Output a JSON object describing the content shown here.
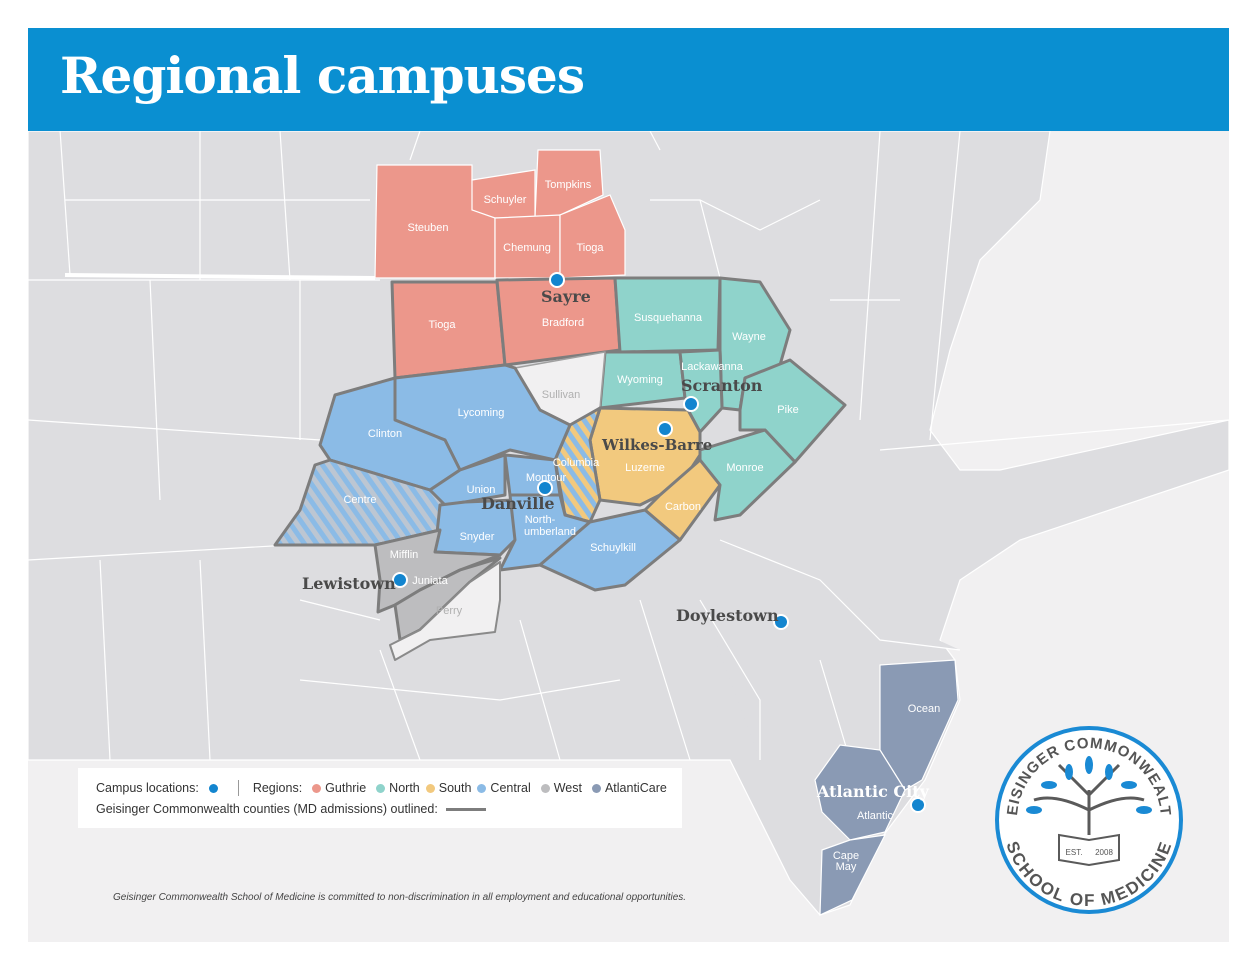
{
  "header": {
    "title": "Regional campuses"
  },
  "colors": {
    "header": "#0a8fd1",
    "guthrie": "#ec978b",
    "north": "#8fd3cb",
    "south": "#f2c97e",
    "central": "#8bbbe6",
    "west": "#bdbdbf",
    "atlanticare": "#8a9ab4",
    "campus_dot": "#1385cf",
    "outline": "#7d7d7d",
    "land": "#dddde0"
  },
  "counties": {
    "steuben": "Steuben",
    "schuyler": "Schuyler",
    "tompkins": "Tompkins",
    "chemung": "Chemung",
    "tioga_ny": "Tioga",
    "tioga_pa": "Tioga",
    "bradford": "Bradford",
    "susquehanna": "Susquehanna",
    "wayne": "Wayne",
    "wyoming": "Wyoming",
    "lackawanna": "Lackawanna",
    "pike": "Pike",
    "monroe": "Monroe",
    "sullivan": "Sullivan",
    "luzerne": "Luzerne",
    "carbon": "Carbon",
    "columbia": "Columbia",
    "lycoming": "Lycoming",
    "clinton": "Clinton",
    "centre": "Centre",
    "union": "Union",
    "montour": "Montour",
    "snyder": "Snyder",
    "northumberland_1": "North-",
    "northumberland_2": "umberland",
    "schuylkill": "Schuylkill",
    "mifflin": "Mifflin",
    "juniata": "Juniata",
    "perry": "Perry",
    "ocean": "Ocean",
    "atlantic": "Atlantic",
    "cape_may_1": "Cape",
    "cape_may_2": "May"
  },
  "campuses": [
    "Sayre",
    "Scranton",
    "Wilkes-Barre",
    "Danville",
    "Lewistown",
    "Doylestown",
    "Atlantic City"
  ],
  "legend": {
    "campus_label": "Campus locations:",
    "regions_label": "Regions:",
    "regions": [
      "Guthrie",
      "North",
      "South",
      "Central",
      "West",
      "AtlantiCare"
    ],
    "outline_label": "Geisinger Commonwealth counties (MD admissions) outlined:"
  },
  "footnote": "Geisinger Commonwealth School of Medicine is committed to non-discrimination in all employment and educational opportunities.",
  "logo": {
    "top": "GEISINGER COMMONWEALTH",
    "bottom": "SCHOOL OF MEDICINE",
    "est": "EST.",
    "year": "2008"
  }
}
